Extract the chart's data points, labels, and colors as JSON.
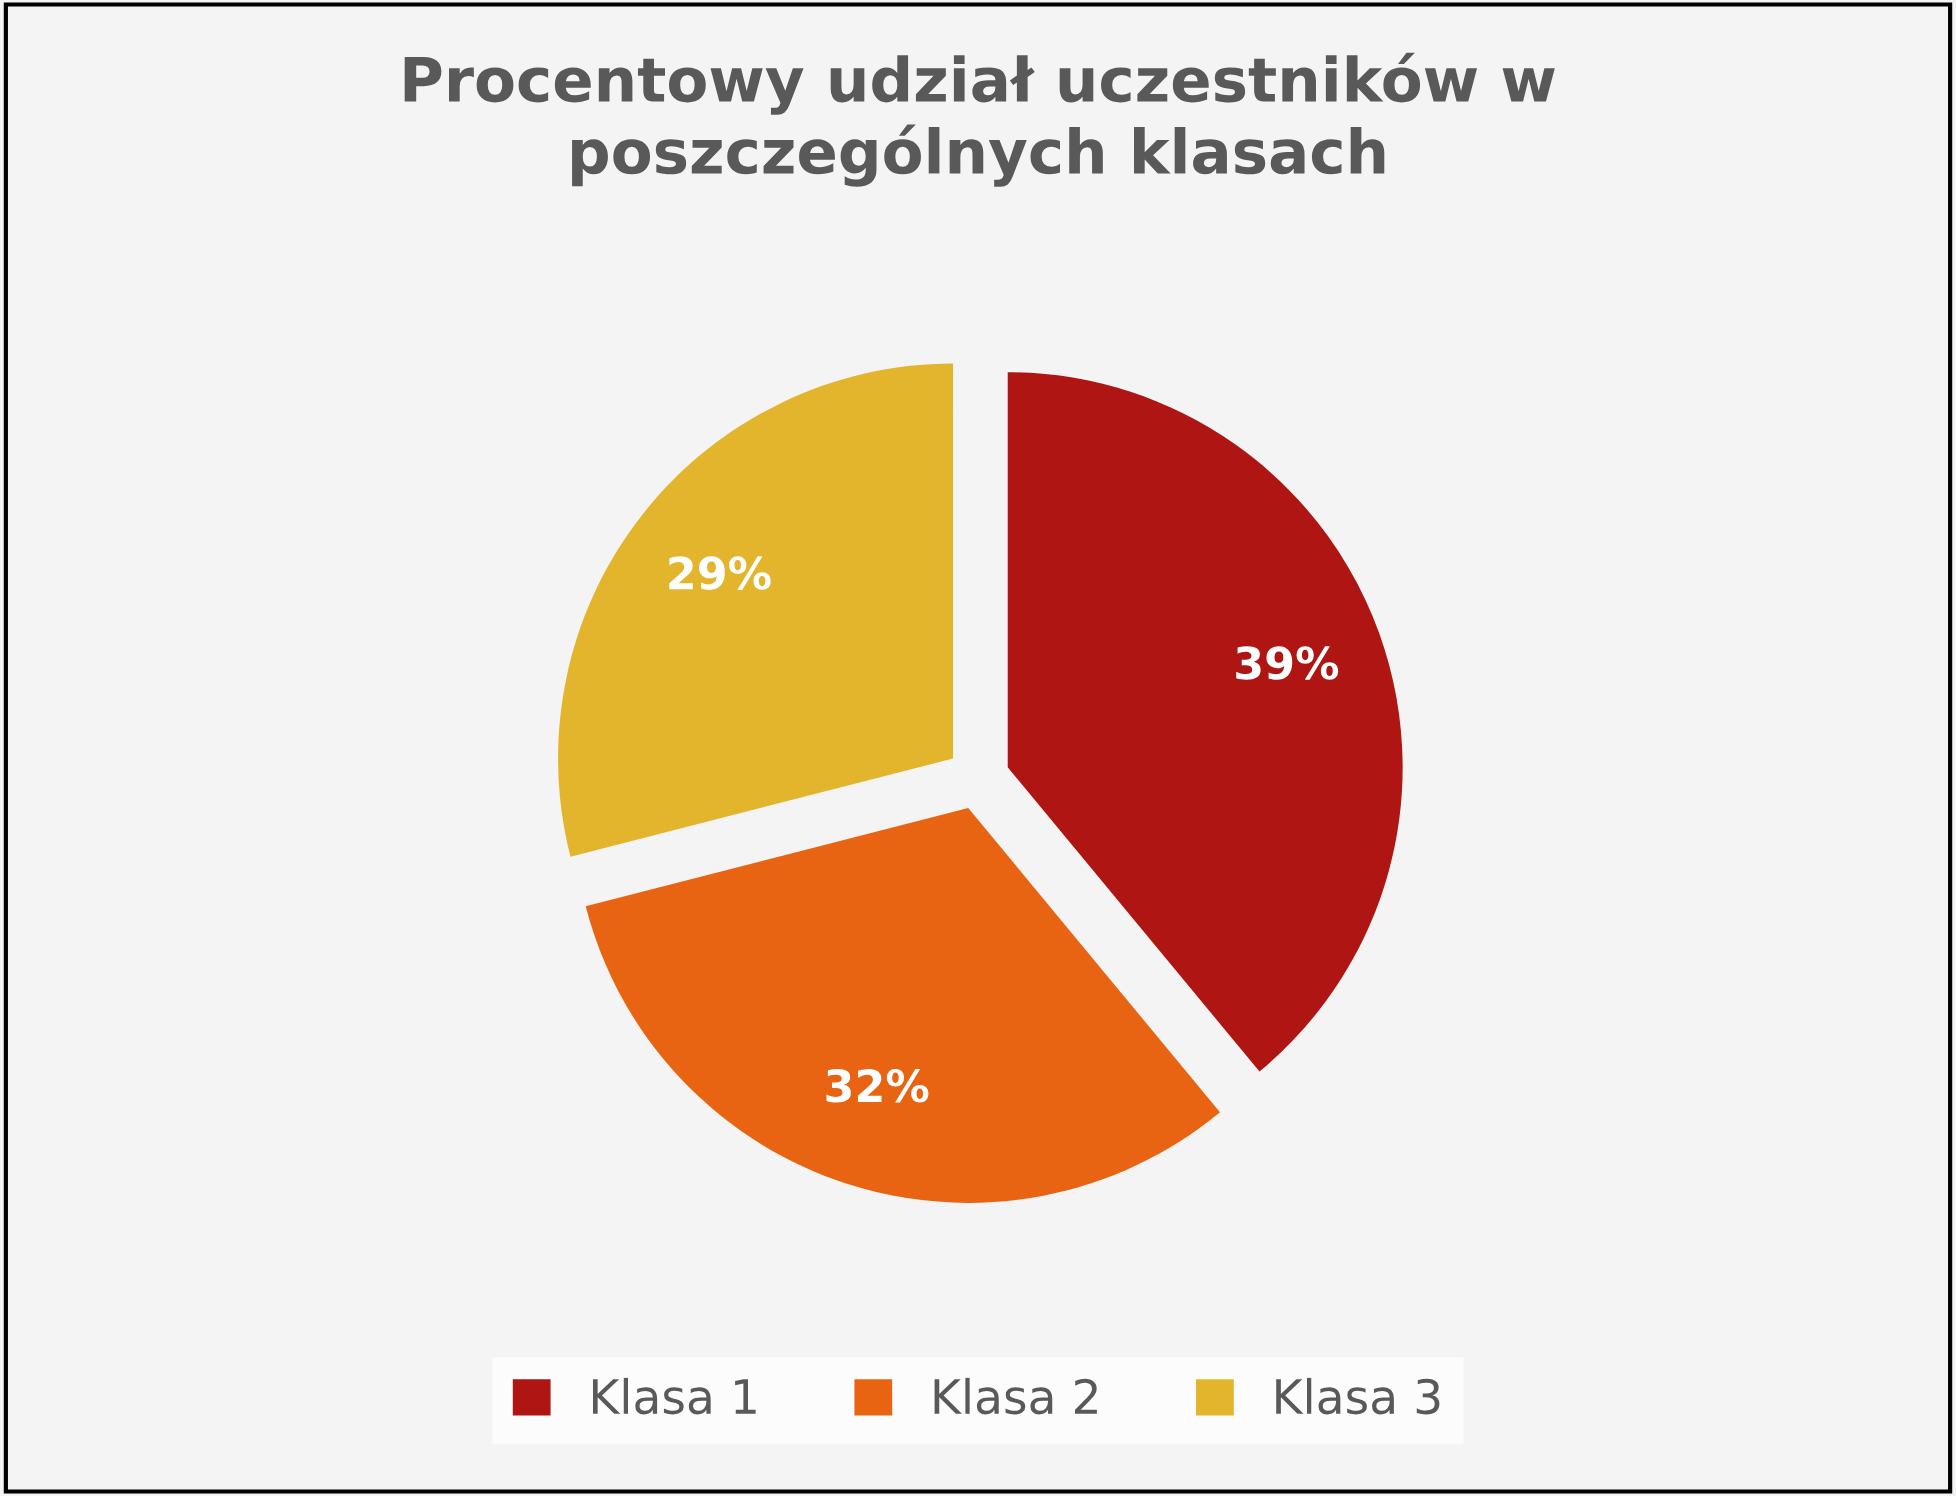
{
  "chart_data": {
    "type": "pie",
    "title": "Procentowy udział uczestników w poszczególnych klasach",
    "categories": [
      "Klasa 1",
      "Klasa 2",
      "Klasa 3"
    ],
    "values": [
      39,
      32,
      29
    ],
    "colors": [
      "#ae1513",
      "#e86413",
      "#e3b52c"
    ],
    "value_labels": [
      "39%",
      "32%",
      "29%"
    ],
    "legend": "bottom"
  }
}
